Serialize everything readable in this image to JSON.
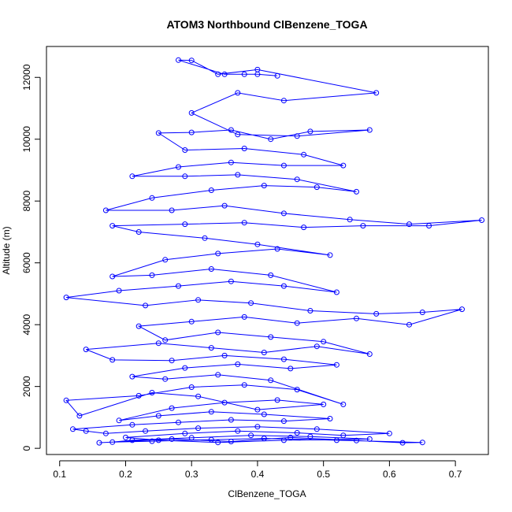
{
  "chart_data": {
    "type": "line",
    "title": "ATOM3 Northbound ClBenzene_TOGA",
    "xlabel": "ClBenzene_TOGA",
    "ylabel": "Altitude (m)",
    "xlim": [
      0.08,
      0.75
    ],
    "ylim": [
      -200,
      13000
    ],
    "xticks": [
      0.1,
      0.2,
      0.3,
      0.4,
      0.5,
      0.6,
      0.7
    ],
    "xtick_labels": [
      "0.1",
      "0.2",
      "0.3",
      "0.4",
      "0.5",
      "0.6",
      "0.7"
    ],
    "yticks": [
      0,
      2000,
      4000,
      6000,
      8000,
      10000,
      12000
    ],
    "ytick_labels": [
      "0",
      "2000",
      "4000",
      "6000",
      "8000",
      "10000",
      "12000"
    ],
    "grid": false,
    "marker": "open-circle",
    "series": [
      {
        "color": "#0000ff",
        "points": [
          [
            0.16,
            180
          ],
          [
            0.27,
            300
          ],
          [
            0.36,
            220
          ],
          [
            0.45,
            350
          ],
          [
            0.55,
            250
          ],
          [
            0.62,
            180
          ],
          [
            0.65,
            190
          ],
          [
            0.52,
            260
          ],
          [
            0.41,
            320
          ],
          [
            0.33,
            280
          ],
          [
            0.24,
            230
          ],
          [
            0.18,
            200
          ],
          [
            0.21,
            260
          ],
          [
            0.3,
            340
          ],
          [
            0.39,
            420
          ],
          [
            0.48,
            380
          ],
          [
            0.57,
            300
          ],
          [
            0.44,
            260
          ],
          [
            0.34,
            190
          ],
          [
            0.25,
            260
          ],
          [
            0.2,
            350
          ],
          [
            0.29,
            480
          ],
          [
            0.37,
            560
          ],
          [
            0.46,
            500
          ],
          [
            0.53,
            420
          ],
          [
            0.6,
            480
          ],
          [
            0.49,
            620
          ],
          [
            0.4,
            700
          ],
          [
            0.31,
            650
          ],
          [
            0.23,
            560
          ],
          [
            0.17,
            480
          ],
          [
            0.14,
            560
          ],
          [
            0.12,
            620
          ],
          [
            0.21,
            760
          ],
          [
            0.28,
            840
          ],
          [
            0.36,
            920
          ],
          [
            0.44,
            880
          ],
          [
            0.51,
            960
          ],
          [
            0.41,
            1100
          ],
          [
            0.33,
            1180
          ],
          [
            0.25,
            1050
          ],
          [
            0.19,
            900
          ],
          [
            0.27,
            1300
          ],
          [
            0.35,
            1480
          ],
          [
            0.43,
            1560
          ],
          [
            0.5,
            1420
          ],
          [
            0.4,
            1250
          ],
          [
            0.31,
            1680
          ],
          [
            0.24,
            1800
          ],
          [
            0.13,
            1050
          ],
          [
            0.11,
            1550
          ],
          [
            0.22,
            1700
          ],
          [
            0.3,
            1980
          ],
          [
            0.38,
            2050
          ],
          [
            0.46,
            1900
          ],
          [
            0.53,
            1420
          ],
          [
            0.42,
            2200
          ],
          [
            0.34,
            2380
          ],
          [
            0.26,
            2240
          ],
          [
            0.21,
            2320
          ],
          [
            0.29,
            2600
          ],
          [
            0.37,
            2720
          ],
          [
            0.45,
            2580
          ],
          [
            0.52,
            2700
          ],
          [
            0.44,
            2880
          ],
          [
            0.35,
            3000
          ],
          [
            0.27,
            2840
          ],
          [
            0.18,
            2860
          ],
          [
            0.14,
            3200
          ],
          [
            0.25,
            3400
          ],
          [
            0.33,
            3250
          ],
          [
            0.41,
            3100
          ],
          [
            0.49,
            3300
          ],
          [
            0.57,
            3050
          ],
          [
            0.5,
            3450
          ],
          [
            0.42,
            3600
          ],
          [
            0.34,
            3750
          ],
          [
            0.26,
            3500
          ],
          [
            0.22,
            3950
          ],
          [
            0.3,
            4100
          ],
          [
            0.38,
            4250
          ],
          [
            0.46,
            4050
          ],
          [
            0.55,
            4200
          ],
          [
            0.63,
            4000
          ],
          [
            0.71,
            4500
          ],
          [
            0.65,
            4400
          ],
          [
            0.58,
            4350
          ],
          [
            0.48,
            4450
          ],
          [
            0.39,
            4700
          ],
          [
            0.31,
            4800
          ],
          [
            0.23,
            4620
          ],
          [
            0.11,
            4880
          ],
          [
            0.19,
            5100
          ],
          [
            0.28,
            5250
          ],
          [
            0.36,
            5400
          ],
          [
            0.44,
            5250
          ],
          [
            0.52,
            5050
          ],
          [
            0.42,
            5600
          ],
          [
            0.33,
            5800
          ],
          [
            0.24,
            5600
          ],
          [
            0.18,
            5560
          ],
          [
            0.26,
            6100
          ],
          [
            0.34,
            6300
          ],
          [
            0.43,
            6450
          ],
          [
            0.51,
            6250
          ],
          [
            0.4,
            6600
          ],
          [
            0.32,
            6800
          ],
          [
            0.22,
            7000
          ],
          [
            0.18,
            7200
          ],
          [
            0.29,
            7250
          ],
          [
            0.38,
            7300
          ],
          [
            0.47,
            7150
          ],
          [
            0.56,
            7200
          ],
          [
            0.66,
            7200
          ],
          [
            0.74,
            7380
          ],
          [
            0.63,
            7250
          ],
          [
            0.54,
            7400
          ],
          [
            0.44,
            7600
          ],
          [
            0.35,
            7850
          ],
          [
            0.27,
            7700
          ],
          [
            0.17,
            7700
          ],
          [
            0.24,
            8100
          ],
          [
            0.33,
            8350
          ],
          [
            0.41,
            8500
          ],
          [
            0.49,
            8450
          ],
          [
            0.55,
            8300
          ],
          [
            0.46,
            8700
          ],
          [
            0.37,
            8850
          ],
          [
            0.29,
            8800
          ],
          [
            0.21,
            8800
          ],
          [
            0.28,
            9100
          ],
          [
            0.36,
            9250
          ],
          [
            0.44,
            9150
          ],
          [
            0.53,
            9150
          ],
          [
            0.47,
            9500
          ],
          [
            0.38,
            9700
          ],
          [
            0.29,
            9650
          ],
          [
            0.25,
            10200
          ],
          [
            0.3,
            10220
          ],
          [
            0.36,
            10300
          ],
          [
            0.42,
            10000
          ],
          [
            0.48,
            10250
          ],
          [
            0.57,
            10300
          ],
          [
            0.46,
            10100
          ],
          [
            0.37,
            10150
          ],
          [
            0.3,
            10850
          ],
          [
            0.37,
            11500
          ],
          [
            0.44,
            11250
          ],
          [
            0.58,
            11500
          ],
          [
            0.4,
            12250
          ],
          [
            0.34,
            12100
          ],
          [
            0.3,
            12550
          ],
          [
            0.28,
            12560
          ],
          [
            0.35,
            12100
          ],
          [
            0.38,
            12100
          ],
          [
            0.4,
            12100
          ],
          [
            0.43,
            12050
          ]
        ]
      }
    ]
  }
}
